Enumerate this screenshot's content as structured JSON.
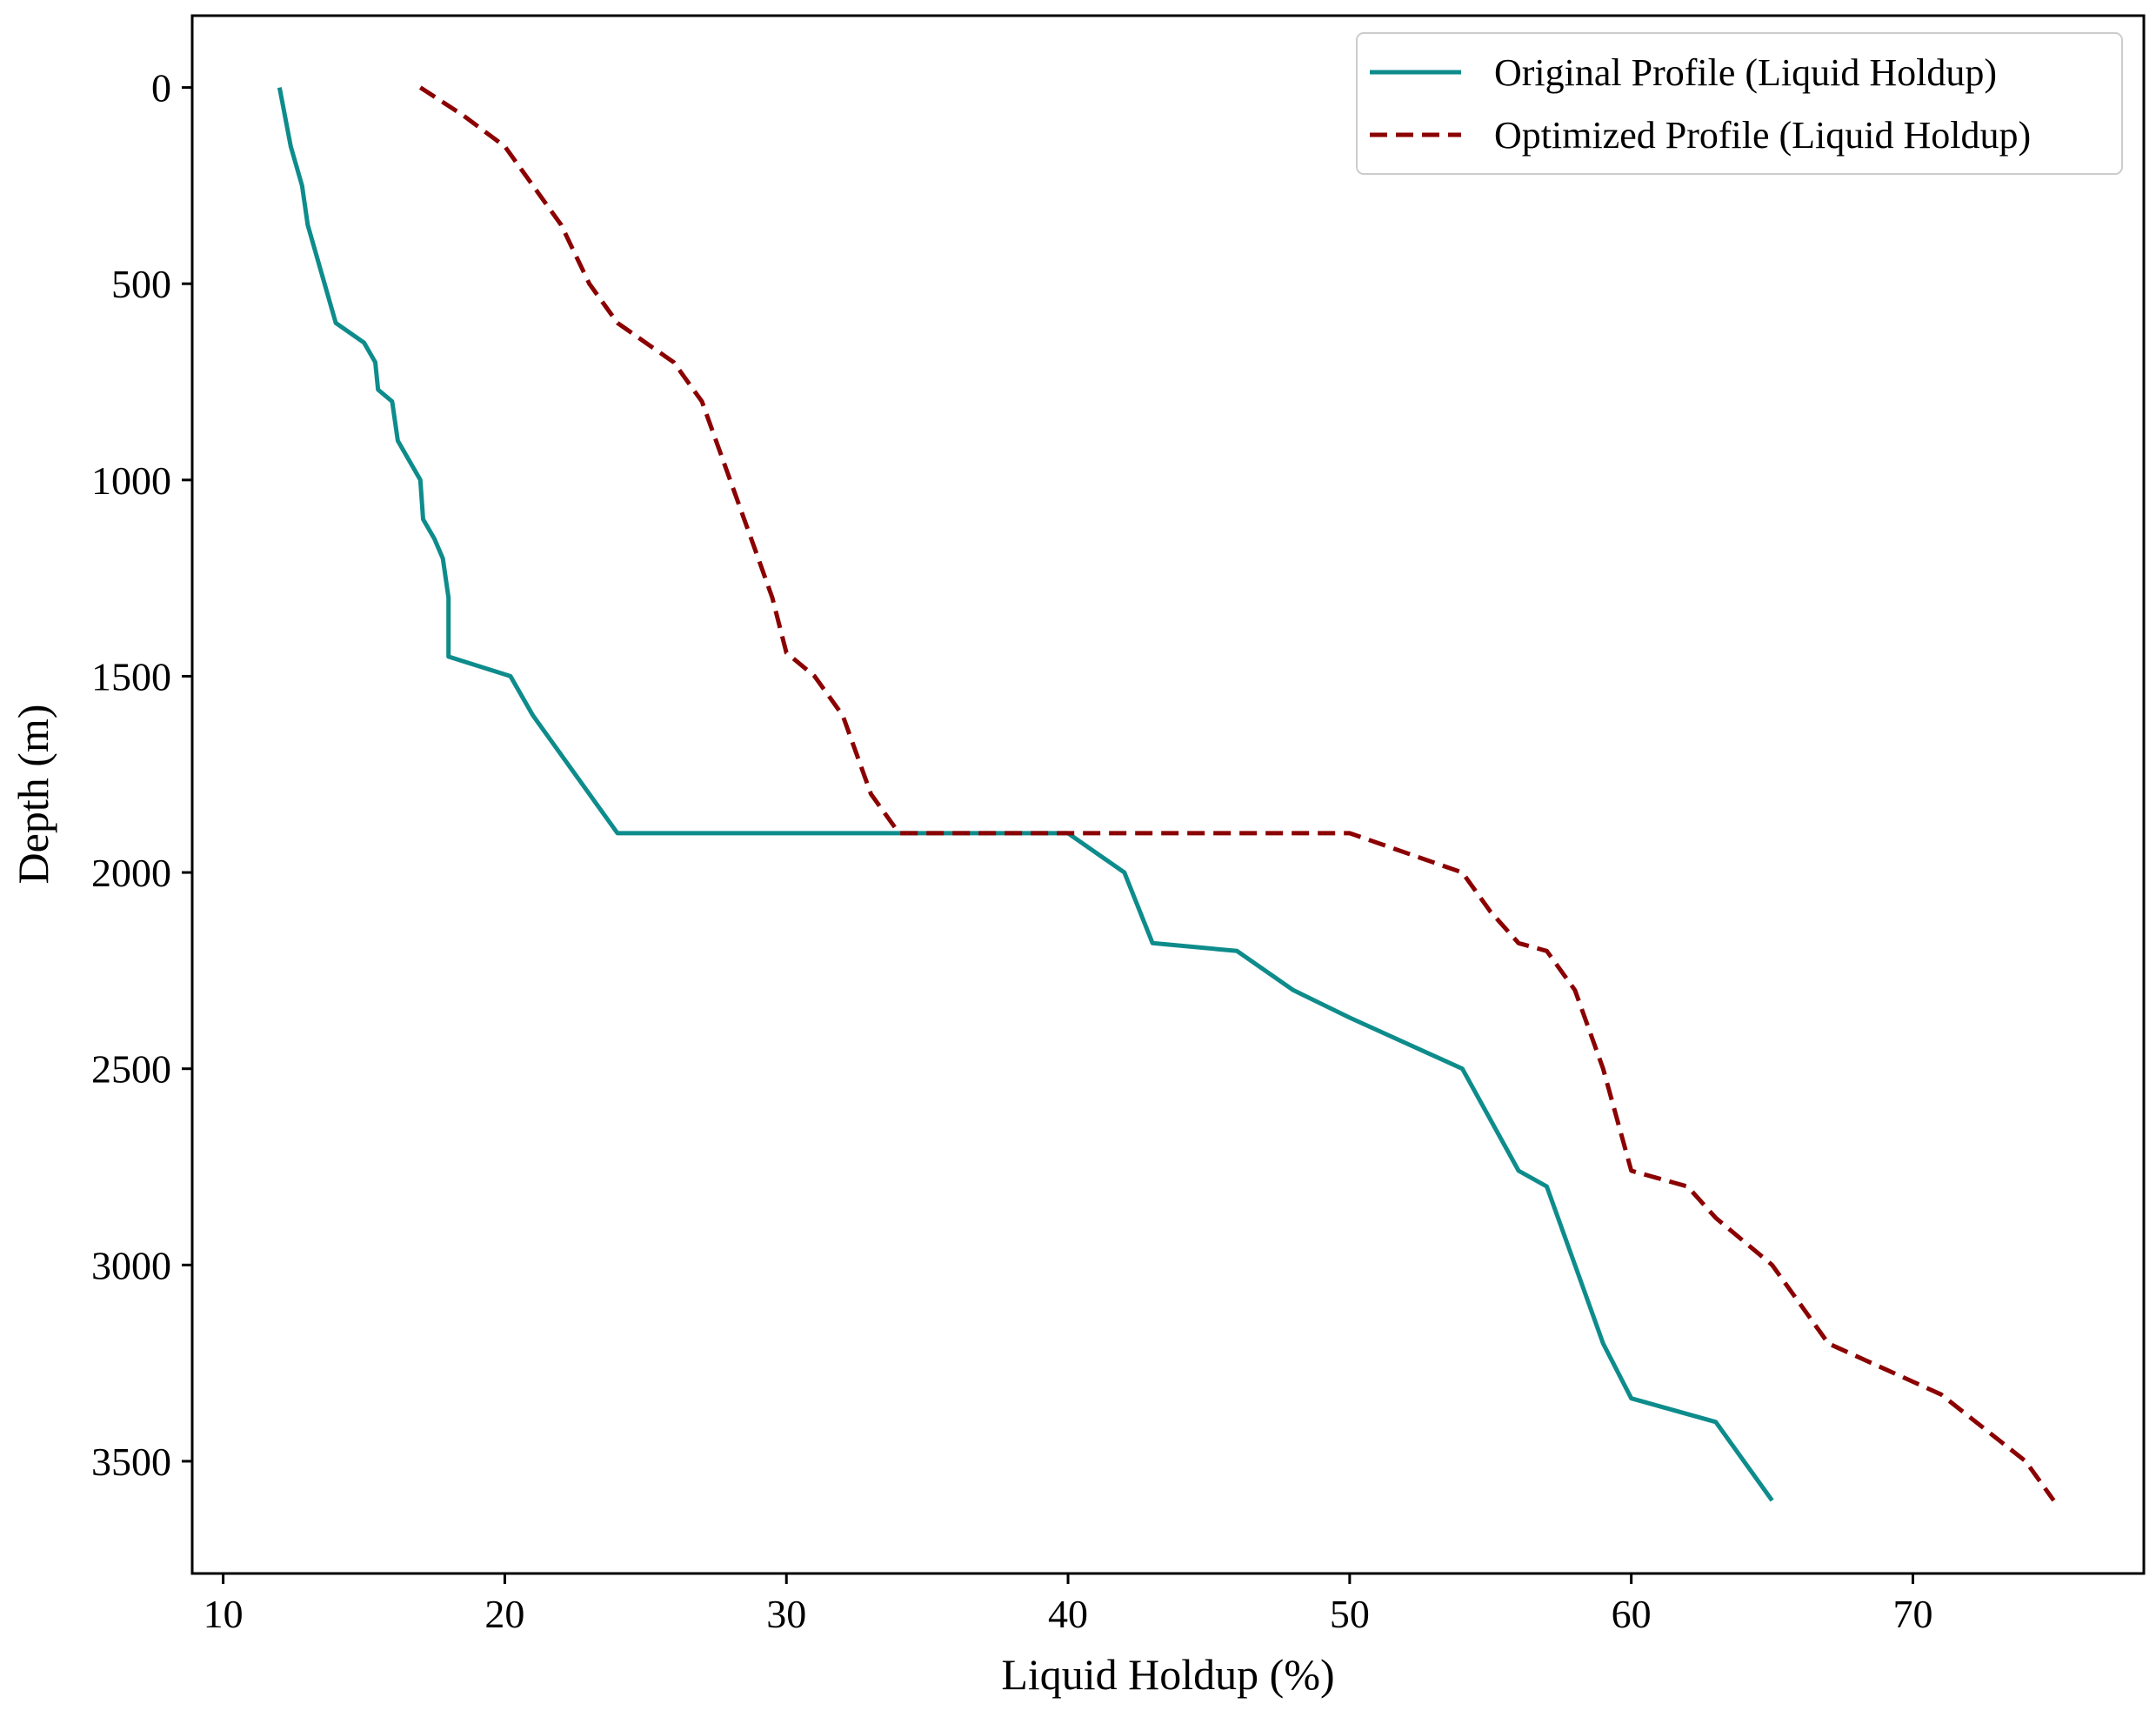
{
  "chart_data": {
    "type": "line",
    "title": "",
    "xlabel": "Liquid Holdup (%)",
    "ylabel": "Depth (m)",
    "xlim": [
      8.9,
      78.2
    ],
    "ylim": [
      3786,
      -183
    ],
    "y_inverted": true,
    "grid": false,
    "legend_position": "top-right",
    "x_ticks": [
      10,
      20,
      30,
      40,
      50,
      60,
      70
    ],
    "y_ticks": [
      0,
      500,
      1000,
      1500,
      2000,
      2500,
      3000,
      3500
    ],
    "x_tick_labels": [
      "10",
      "20",
      "30",
      "40",
      "50",
      "60",
      "70"
    ],
    "y_tick_labels": [
      "0",
      "500",
      "1000",
      "1500",
      "2000",
      "2500",
      "3000",
      "3500"
    ],
    "series": [
      {
        "name": "Original Profile (Liquid Holdup)",
        "color": "#0e8c8c",
        "style": "solid",
        "x": [
          12,
          12.4,
          12.8,
          13,
          14,
          15,
          15.4,
          15.5,
          16,
          16.2,
          17,
          17.1,
          17.5,
          17.8,
          18,
          18,
          20.2,
          21,
          24,
          25,
          40,
          42,
          43,
          46,
          48,
          50,
          54,
          56,
          57,
          58,
          59,
          60,
          63,
          65
        ],
        "y": [
          0,
          150,
          250,
          350,
          600,
          650,
          700,
          770,
          800,
          900,
          1000,
          1100,
          1150,
          1200,
          1300,
          1450,
          1500,
          1600,
          1900,
          1900,
          1900,
          2000,
          2180,
          2200,
          2300,
          2370,
          2500,
          2760,
          2800,
          3000,
          3200,
          3340,
          3400,
          3600
        ]
      },
      {
        "name": "Optimized Profile (Liquid Holdup)",
        "color": "#8b0000",
        "style": "dashed",
        "x": [
          17,
          18.5,
          20,
          21,
          22,
          23,
          24,
          25,
          26,
          27,
          28,
          29,
          29.5,
          30,
          31,
          32,
          33,
          34,
          35,
          50,
          54,
          55,
          56,
          57,
          58,
          59,
          60,
          62,
          63,
          65,
          67,
          71,
          74,
          75
        ],
        "y": [
          0,
          70,
          150,
          250,
          350,
          500,
          600,
          650,
          700,
          800,
          1000,
          1200,
          1300,
          1440,
          1500,
          1600,
          1800,
          1900,
          1900,
          1900,
          2000,
          2100,
          2180,
          2200,
          2300,
          2500,
          2760,
          2800,
          2880,
          3000,
          3200,
          3330,
          3500,
          3600
        ]
      }
    ]
  }
}
